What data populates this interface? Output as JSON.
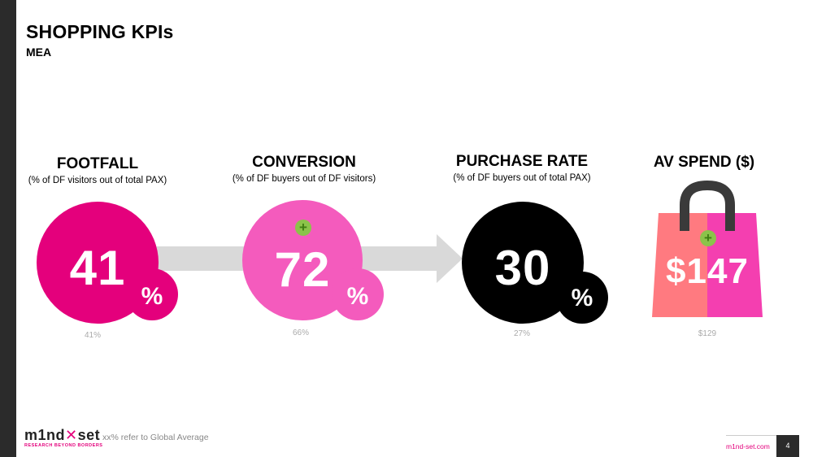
{
  "slide": {
    "title": "SHOPPING KPIs",
    "subtitle": "MEA"
  },
  "kpis": [
    {
      "heading": "FOOTFALL",
      "description": "(% of DF visitors out of total PAX)",
      "value": "41",
      "unit": "%",
      "global_average": "41%",
      "color": "#e4007c"
    },
    {
      "heading": "CONVERSION",
      "description": "(% of DF buyers out of DF visitors)",
      "value": "72",
      "unit": "%",
      "global_average": "66%",
      "color": "#f45bbd",
      "badge": "+"
    },
    {
      "heading": "PURCHASE RATE",
      "description": "(% of DF buyers out of total PAX)",
      "value": "30",
      "unit": "%",
      "global_average": "27%",
      "color": "#000000"
    },
    {
      "heading": "AV SPEND ($)",
      "value": "$147",
      "global_average": "$129",
      "color_left": "#ff7a80",
      "color_right": "#f43fb0",
      "badge": "+"
    }
  ],
  "footer": {
    "note": "xx% refer to Global Average",
    "logo_text_a": "m1nd",
    "logo_text_b": "set",
    "logo_tagline": "RESEARCH BEYOND BORDERS",
    "website": "m1nd-set.com",
    "page_number": "4"
  },
  "icons": [
    "plus-icon",
    "shopping-bag-icon"
  ]
}
